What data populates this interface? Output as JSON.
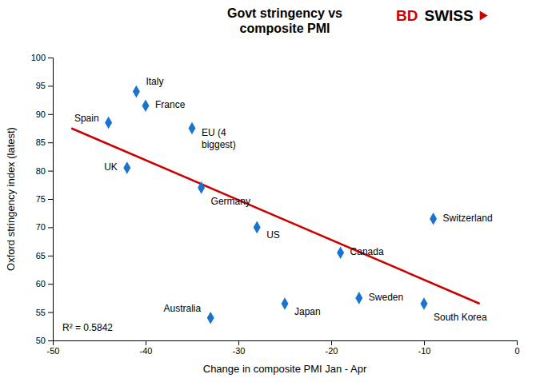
{
  "chart_data": {
    "type": "scatter",
    "title": "Govt stringency vs\ncomposite PMI",
    "x_label": "Change in composite PMI Jan - Apr",
    "y_label": "Oxford stringency index (latest)",
    "xlim": [
      -50,
      0
    ],
    "ylim": [
      50,
      100
    ],
    "xticks": [
      -50,
      -40,
      -30,
      -20,
      -10,
      0
    ],
    "yticks": [
      50,
      55,
      60,
      65,
      70,
      75,
      80,
      85,
      90,
      95,
      100
    ],
    "grid": false,
    "labels": [
      "Italy",
      "France",
      "Spain",
      "EU (4\nbiggest)",
      "UK",
      "Germany",
      "US",
      "Switzerland",
      "Canada",
      "Japan",
      "Sweden",
      "Australia",
      "South Korea"
    ],
    "x": [
      -41,
      -40,
      -44,
      -35,
      -42,
      -34,
      -28,
      -9,
      -19,
      -25,
      -17,
      -33,
      -10
    ],
    "values": [
      94.0,
      91.5,
      88.5,
      87.5,
      80.5,
      77.0,
      70.0,
      71.5,
      65.5,
      56.5,
      57.5,
      54.0,
      56.5
    ],
    "color": "#1874CD",
    "marker": "diamond",
    "trendline": {
      "x": [
        -48,
        -4
      ],
      "values": [
        87.5,
        56.5
      ],
      "color": "#CC0000"
    },
    "annotations": [
      {
        "text": "R² = 0.5842"
      },
      {
        "text": "BD",
        "color": "#CC0000"
      },
      {
        "text": "SWISS",
        "color": "#000000"
      }
    ]
  }
}
